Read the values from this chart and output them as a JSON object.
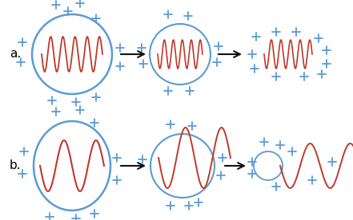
{
  "bg_color": "#ffffff",
  "blue_color": "#5b9bd5",
  "red_color": "#c0392b",
  "plus_color": "#5b9bd5",
  "arrow_color": "#111111",
  "label_a": "a.",
  "label_b": "b.",
  "figw": 4.41,
  "figh": 2.76,
  "dpi": 100
}
